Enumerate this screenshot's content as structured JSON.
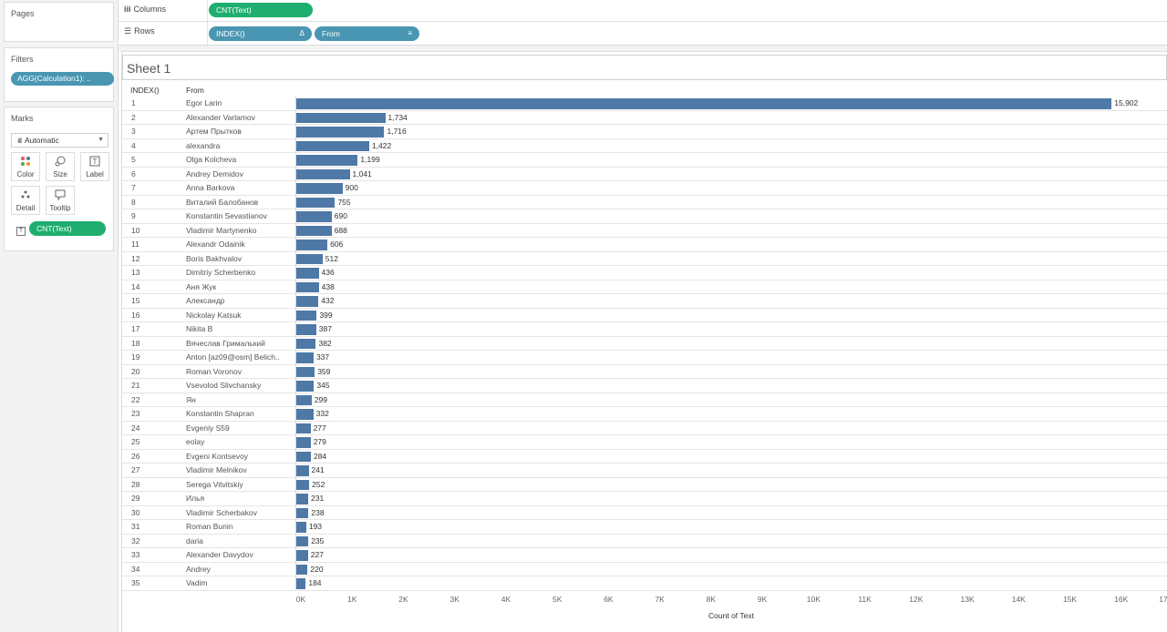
{
  "panels": {
    "pages_title": "Pages",
    "filters_title": "Filters",
    "filter_pill": "AGG(Calculation1): ..",
    "marks_title": "Marks",
    "mark_type": "Automatic",
    "buttons": {
      "color": "Color",
      "size": "Size",
      "label": "Label",
      "detail": "Detail",
      "tooltip": "Tooltip"
    },
    "marks_pill": "CNT(Text)"
  },
  "shelves": {
    "columns_label": "Columns",
    "columns_pill": "CNT(Text)",
    "rows_label": "Rows",
    "rows_pills": [
      "INDEX()",
      "From"
    ]
  },
  "sheet": {
    "title": "Sheet 1",
    "col_index": "INDEX()",
    "col_from": "From"
  },
  "colors": {
    "bar": "#4e79a7",
    "pill_green": "#1fae6f",
    "pill_blue": "#4996b2"
  },
  "chart_data": {
    "type": "bar",
    "orientation": "horizontal",
    "xlabel": "Count of Text",
    "xlim": [
      0,
      17000
    ],
    "x_ticks": [
      "0K",
      "1K",
      "2K",
      "3K",
      "4K",
      "5K",
      "6K",
      "7K",
      "8K",
      "9K",
      "10K",
      "11K",
      "12K",
      "13K",
      "14K",
      "15K",
      "16K",
      "17"
    ],
    "rows": [
      {
        "index": "1",
        "from": "Egor Larin",
        "value": 15902,
        "label": "15,902"
      },
      {
        "index": "2",
        "from": "Alexander Varlamov",
        "value": 1734,
        "label": "1,734"
      },
      {
        "index": "3",
        "from": "Артем Прытков",
        "value": 1716,
        "label": "1,716"
      },
      {
        "index": "4",
        "from": "alexandra",
        "value": 1422,
        "label": "1,422"
      },
      {
        "index": "5",
        "from": "Olga Kolcheva",
        "value": 1199,
        "label": "1,199"
      },
      {
        "index": "6",
        "from": "Andrey Demidov",
        "value": 1041,
        "label": "1,041"
      },
      {
        "index": "7",
        "from": "Anna Barkova",
        "value": 900,
        "label": "900"
      },
      {
        "index": "8",
        "from": "Виталий Балобанов",
        "value": 755,
        "label": "755"
      },
      {
        "index": "9",
        "from": "Konstantin Sevastianov",
        "value": 690,
        "label": "690"
      },
      {
        "index": "10",
        "from": "Vladimir Martynenko",
        "value": 688,
        "label": "688"
      },
      {
        "index": "11",
        "from": "Alexandr Odainik",
        "value": 606,
        "label": "606"
      },
      {
        "index": "12",
        "from": "Boris Bakhvalov",
        "value": 512,
        "label": "512"
      },
      {
        "index": "13",
        "from": "Dimitriy Scherbenko",
        "value": 436,
        "label": "436"
      },
      {
        "index": "14",
        "from": "Аня Жук",
        "value": 438,
        "label": "438"
      },
      {
        "index": "15",
        "from": "Александр",
        "value": 432,
        "label": "432"
      },
      {
        "index": "16",
        "from": "Nickolay Katsuk",
        "value": 399,
        "label": "399"
      },
      {
        "index": "17",
        "from": "Nikita B",
        "value": 387,
        "label": "387"
      },
      {
        "index": "18",
        "from": "Вячеслав Грималький",
        "value": 382,
        "label": "382"
      },
      {
        "index": "19",
        "from": "Anton [az09@osm] Belich..",
        "value": 337,
        "label": "337"
      },
      {
        "index": "20",
        "from": "Roman Voronov",
        "value": 359,
        "label": "359"
      },
      {
        "index": "21",
        "from": "Vsevolod Slivchansky",
        "value": 345,
        "label": "345"
      },
      {
        "index": "22",
        "from": "Ян",
        "value": 299,
        "label": "299"
      },
      {
        "index": "23",
        "from": "Konstantin Shapran",
        "value": 332,
        "label": "332"
      },
      {
        "index": "24",
        "from": "Evgeniy S59",
        "value": 277,
        "label": "277"
      },
      {
        "index": "25",
        "from": "eolay",
        "value": 279,
        "label": "279"
      },
      {
        "index": "26",
        "from": "Evgeni Kontsevoy",
        "value": 284,
        "label": "284"
      },
      {
        "index": "27",
        "from": "Vladimir Melnikov",
        "value": 241,
        "label": "241"
      },
      {
        "index": "28",
        "from": "Serega Vitvitskiy",
        "value": 252,
        "label": "252"
      },
      {
        "index": "29",
        "from": "Илья",
        "value": 231,
        "label": "231"
      },
      {
        "index": "30",
        "from": "Vladimir Scherbakov",
        "value": 238,
        "label": "238"
      },
      {
        "index": "31",
        "from": "Roman Bunin",
        "value": 193,
        "label": "193"
      },
      {
        "index": "32",
        "from": "daria",
        "value": 235,
        "label": "235"
      },
      {
        "index": "33",
        "from": "Alexander Davydov",
        "value": 227,
        "label": "227"
      },
      {
        "index": "34",
        "from": "Andrey",
        "value": 220,
        "label": "220"
      },
      {
        "index": "35",
        "from": "Vadim",
        "value": 184,
        "label": "184"
      }
    ]
  }
}
